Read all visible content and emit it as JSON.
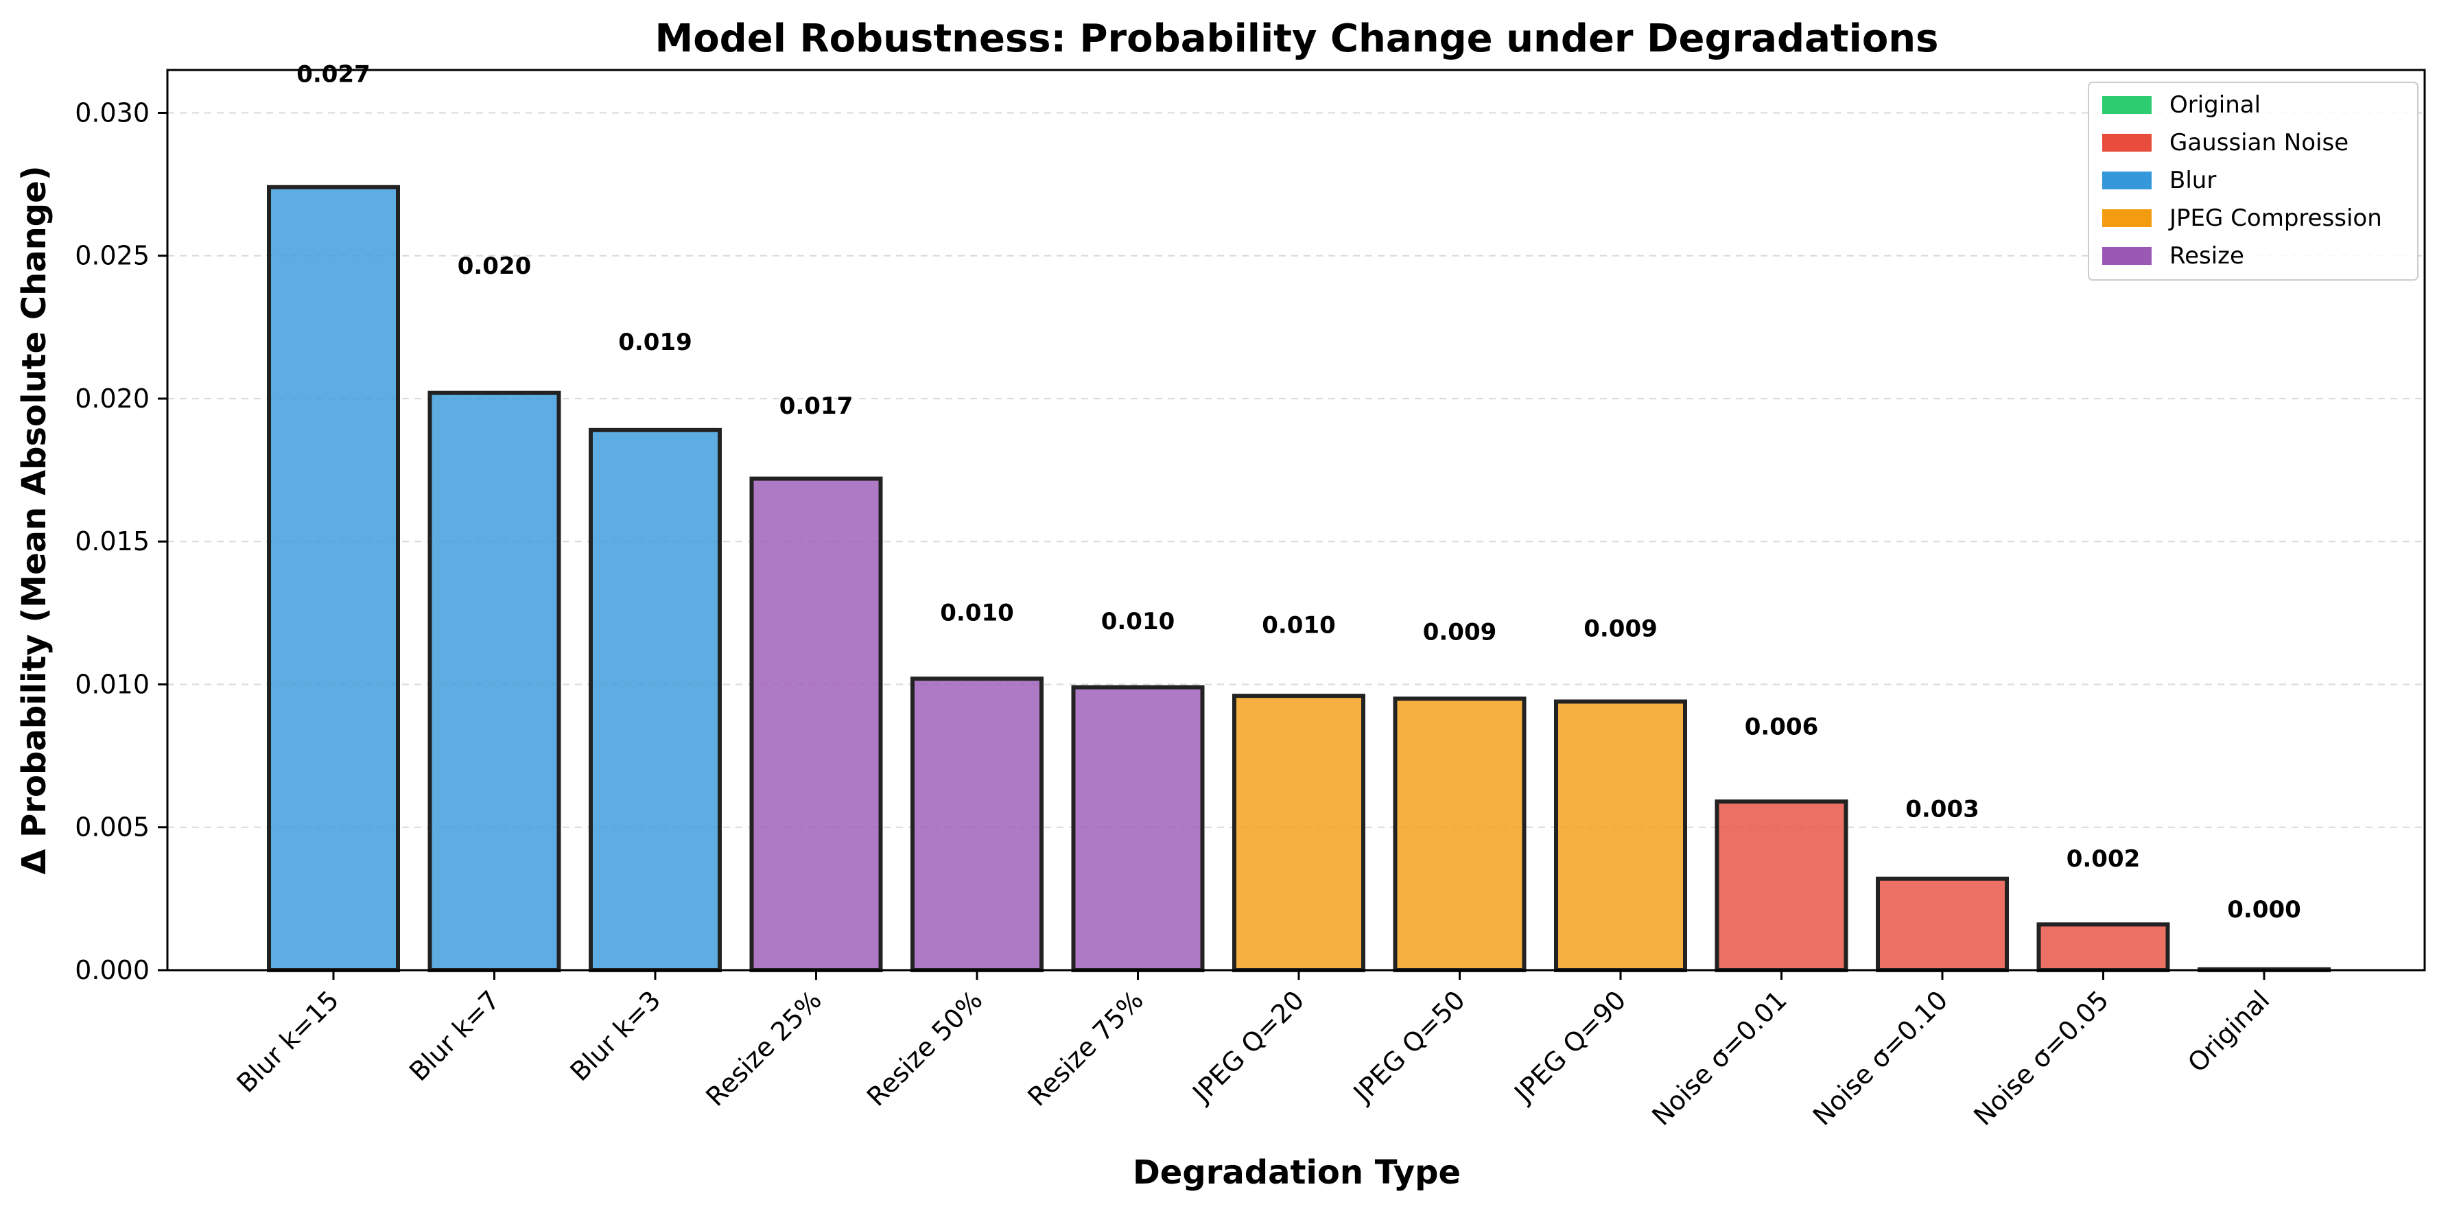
{
  "chart_data": {
    "type": "bar",
    "title": "Model Robustness: Probability Change under Degradations",
    "xlabel": "Degradation Type",
    "ylabel": "Δ Probability (Mean Absolute Change)",
    "ylim": [
      0,
      0.0315
    ],
    "yticks": [
      "0.000",
      "0.005",
      "0.010",
      "0.015",
      "0.020",
      "0.025",
      "0.030"
    ],
    "grid": "horizontal dashed",
    "legend_position": "top-right",
    "categories": [
      "Blur k=15",
      "Blur k=7",
      "Blur k=3",
      "Resize 25%",
      "Resize 50%",
      "Resize 75%",
      "JPEG Q=20",
      "JPEG Q=50",
      "JPEG Q=90",
      "Noise σ=0.01",
      "Noise σ=0.10",
      "Noise σ=0.05",
      "Original"
    ],
    "values": [
      0.0274,
      0.0202,
      0.0189,
      0.0172,
      0.0102,
      0.0099,
      0.0096,
      0.0095,
      0.0094,
      0.0059,
      0.0032,
      0.0016,
      3e-05
    ],
    "value_labels": [
      "0.027",
      "0.020",
      "0.019",
      "0.017",
      "0.010",
      "0.010",
      "0.010",
      "0.009",
      "0.009",
      "0.006",
      "0.003",
      "0.002",
      "0.000"
    ],
    "groups": [
      "Blur",
      "Blur",
      "Blur",
      "Resize",
      "Resize",
      "Resize",
      "JPEG Compression",
      "JPEG Compression",
      "JPEG Compression",
      "Gaussian Noise",
      "Gaussian Noise",
      "Gaussian Noise",
      "Original"
    ],
    "legend": [
      {
        "name": "Original",
        "color": "#2ecc71"
      },
      {
        "name": "Gaussian Noise",
        "color": "#e74c3c"
      },
      {
        "name": "Blur",
        "color": "#3498db"
      },
      {
        "name": "JPEG Compression",
        "color": "#f39c12"
      },
      {
        "name": "Resize",
        "color": "#9b59b6"
      }
    ],
    "bar_alpha": 0.8
  }
}
